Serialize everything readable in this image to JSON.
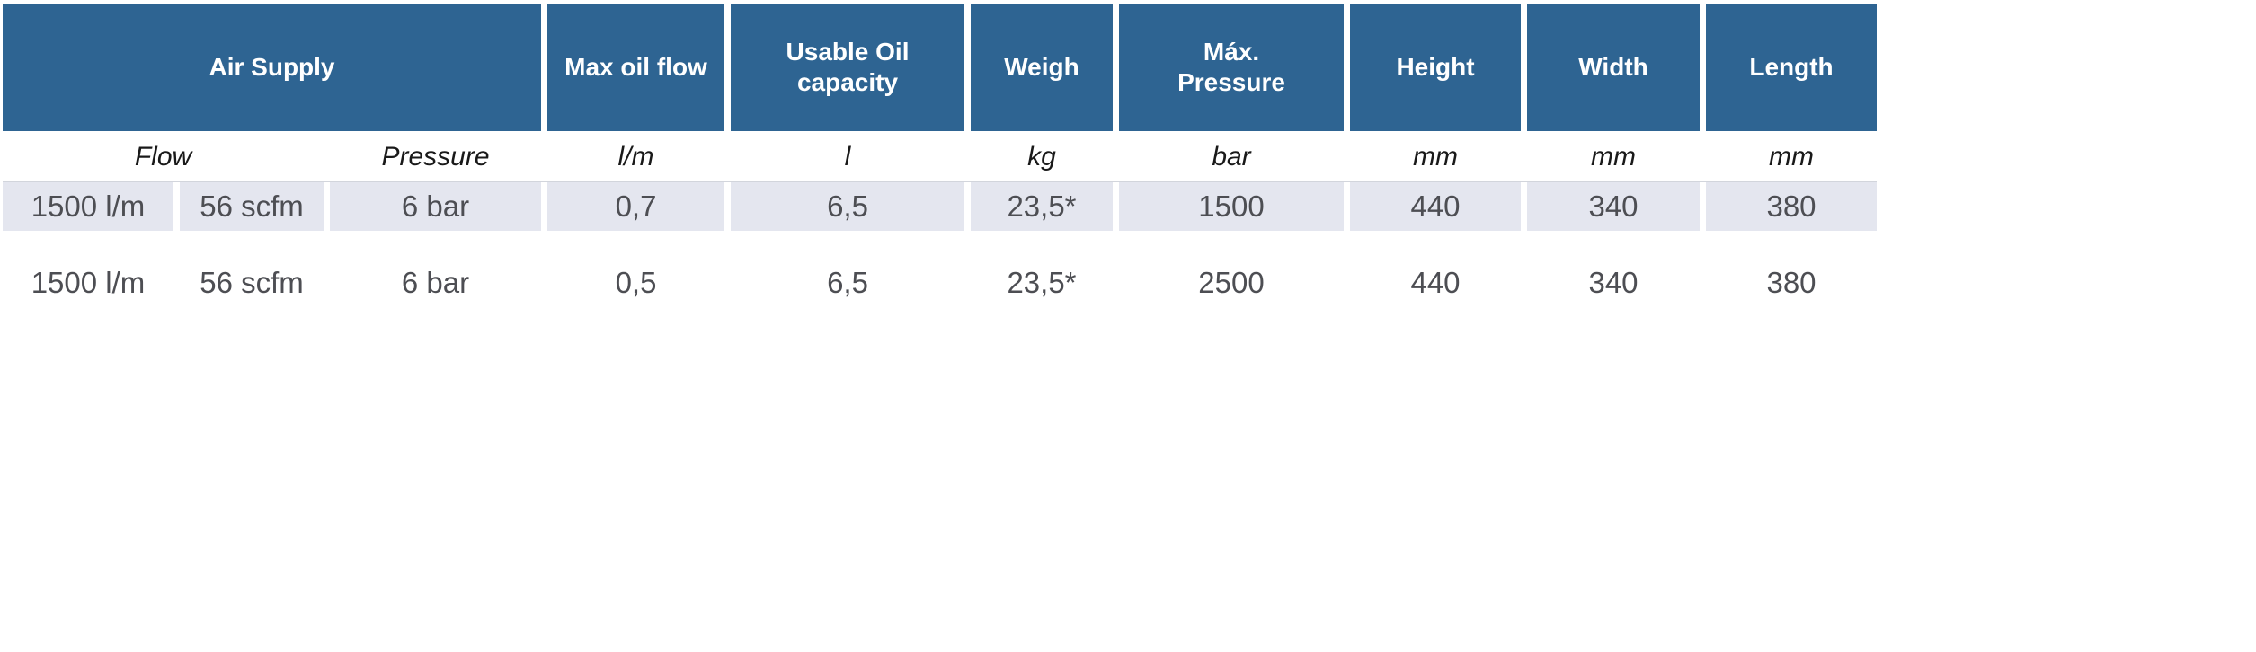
{
  "chart_data": {
    "type": "table",
    "header_groups": [
      {
        "label": "Air Supply",
        "colspan": 3
      },
      {
        "label": "Max oil flow",
        "colspan": 1
      },
      {
        "label": "Usable Oil capacity",
        "colspan": 1
      },
      {
        "label": "Weigh",
        "colspan": 1
      },
      {
        "label": "Máx. Pressure",
        "colspan": 1
      },
      {
        "label": "Height",
        "colspan": 1
      },
      {
        "label": "Width",
        "colspan": 1
      },
      {
        "label": "Length",
        "colspan": 1
      }
    ],
    "subheaders": [
      {
        "label": "Flow",
        "colspan": 2
      },
      {
        "label": "Pressure",
        "colspan": 1
      },
      {
        "label": "l/m",
        "colspan": 1
      },
      {
        "label": "l",
        "colspan": 1
      },
      {
        "label": "kg",
        "colspan": 1
      },
      {
        "label": "bar",
        "colspan": 1
      },
      {
        "label": "mm",
        "colspan": 1
      },
      {
        "label": "mm",
        "colspan": 1
      },
      {
        "label": "mm",
        "colspan": 1
      }
    ],
    "rows": [
      [
        "1500 l/m",
        "56 scfm",
        "6 bar",
        "0,7",
        "6,5",
        "23,5*",
        "1500",
        "440",
        "340",
        "380"
      ],
      [
        "1500 l/m",
        "56 scfm",
        "6 bar",
        "0,5",
        "6,5",
        "23,5*",
        "2500",
        "440",
        "340",
        "380"
      ]
    ],
    "layout_hints": {
      "header_merged_over_columns": "Air Supply spans Flow(l/m), Flow(scfm) and Pressure value columns",
      "row_striping": "first data row shaded, second data row white",
      "grid": "cells separated by white gutters, no outer border"
    }
  },
  "colors": {
    "header_bg": "#2e6492",
    "header_text": "#ffffff",
    "row_alt_bg": "#e4e6ef",
    "data_text": "#4d4e53",
    "subheader_text": "#191919",
    "divider": "#d2d5dc"
  }
}
